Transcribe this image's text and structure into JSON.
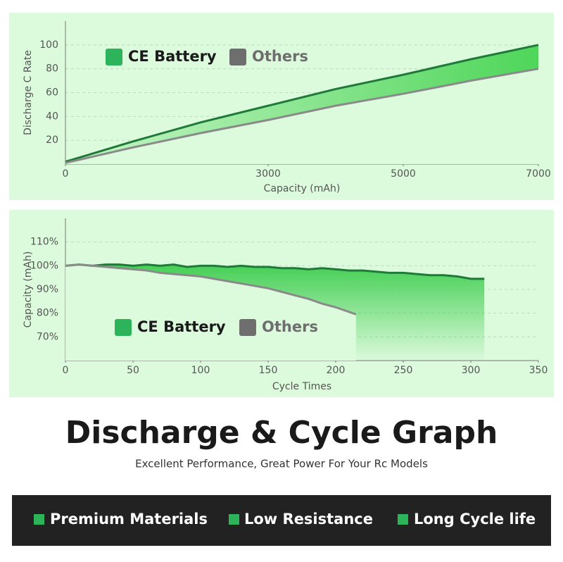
{
  "chart_data": [
    {
      "type": "line",
      "xlabel": "Capacity (mAh)",
      "ylabel": "Discharge C Rate",
      "xlim": [
        0,
        7000
      ],
      "xticks": [
        0,
        3000,
        5000,
        7000
      ],
      "ylim": [
        0,
        120
      ],
      "yticks": [
        20,
        40,
        60,
        80,
        100
      ],
      "grid": true,
      "series": [
        {
          "name": "CE Battery",
          "color": "#2db45a",
          "x": [
            0,
            1000,
            2000,
            3000,
            4000,
            5000,
            6000,
            7000
          ],
          "values": [
            2,
            19,
            35,
            49,
            63,
            75,
            88,
            100
          ]
        },
        {
          "name": "Others",
          "color": "#6e6e6e",
          "x": [
            0,
            1000,
            2000,
            3000,
            4000,
            5000,
            6000,
            7000
          ],
          "values": [
            1,
            14,
            26,
            37,
            49,
            59,
            70,
            80
          ]
        }
      ]
    },
    {
      "type": "line",
      "xlabel": "Cycle Times",
      "ylabel": "Capacity (mAh)",
      "xlim": [
        0,
        350
      ],
      "xticks": [
        0,
        50,
        100,
        150,
        200,
        250,
        300,
        350
      ],
      "ylim": [
        60,
        120
      ],
      "yticks": [
        {
          "value": 70,
          "label": "70%"
        },
        {
          "value": 80,
          "label": "80%"
        },
        {
          "value": 90,
          "label": "90%"
        },
        {
          "value": 100,
          "label": "100%"
        },
        {
          "value": 110,
          "label": "110%"
        }
      ],
      "grid": true,
      "series": [
        {
          "name": "CE Battery",
          "color": "#2db45a",
          "x": [
            0,
            10,
            20,
            30,
            40,
            50,
            60,
            70,
            80,
            90,
            100,
            110,
            120,
            130,
            140,
            150,
            160,
            170,
            180,
            190,
            200,
            210,
            220,
            230,
            240,
            250,
            260,
            270,
            280,
            290,
            300,
            310
          ],
          "values": [
            100,
            100.5,
            100,
            100.5,
            100.5,
            100,
            100.5,
            100,
            100.5,
            99.5,
            100,
            100,
            99.5,
            100,
            99.5,
            99.5,
            99,
            99,
            98.5,
            99,
            98.5,
            98,
            98,
            97.5,
            97,
            97,
            96.5,
            96,
            96,
            95.5,
            94.5,
            94.5
          ]
        },
        {
          "name": "Others",
          "color": "#6e6e6e",
          "x": [
            0,
            10,
            20,
            30,
            40,
            50,
            60,
            70,
            80,
            90,
            100,
            110,
            120,
            130,
            140,
            150,
            160,
            170,
            180,
            190,
            200,
            210,
            215
          ],
          "values": [
            100,
            100.5,
            100,
            99.5,
            99,
            98.5,
            98,
            97,
            96.5,
            96,
            95.5,
            94.5,
            93.5,
            92.5,
            91.5,
            90.5,
            89,
            87.5,
            86,
            84,
            82.5,
            80.5,
            79.5
          ]
        }
      ]
    }
  ],
  "heading": "Discharge & Cycle Graph",
  "subheading": "Excellent Performance, Great Power For Your Rc Models",
  "features": [
    "Premium Materials",
    "Low Resistance",
    "Long Cycle life"
  ]
}
